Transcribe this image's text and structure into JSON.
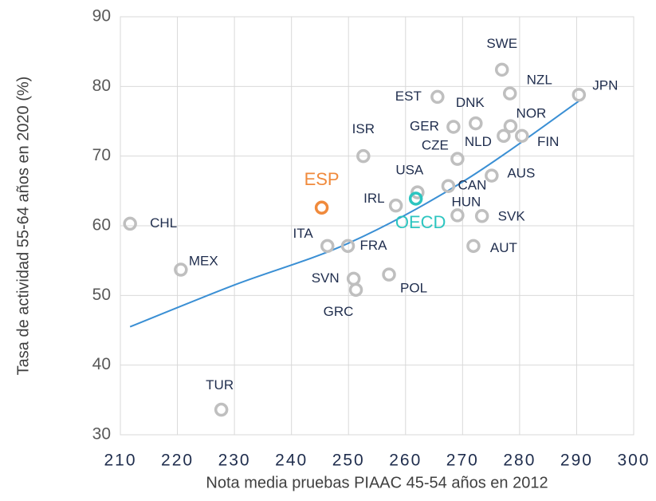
{
  "chart_data": {
    "type": "scatter",
    "xlabel": "Nota media pruebas PIAAC 45-54 años en 2012",
    "ylabel": "Tasa de actividad 55-64 años en 2020 (%)",
    "xlim": [
      210,
      300
    ],
    "xticks": [
      210,
      220,
      230,
      240,
      250,
      260,
      270,
      280,
      290,
      300
    ],
    "ylim": [
      30,
      90
    ],
    "yticks": [
      30,
      40,
      50,
      60,
      70,
      80,
      90
    ],
    "grid": true,
    "color": "#bfbfbf",
    "points": [
      {
        "label": "CHL",
        "x": 211.7,
        "y": 60.3
      },
      {
        "label": "MEX",
        "x": 220.6,
        "y": 53.7
      },
      {
        "label": "TUR",
        "x": 227.7,
        "y": 33.6
      },
      {
        "label": "ITA",
        "x": 246.3,
        "y": 57.1
      },
      {
        "label": "FRA",
        "x": 249.9,
        "y": 57.1
      },
      {
        "label": "SVN",
        "x": 250.9,
        "y": 52.4
      },
      {
        "label": "GRC",
        "x": 251.3,
        "y": 50.8
      },
      {
        "label": "ESP",
        "x": 245.3,
        "y": 62.6,
        "color": "#f08a3c"
      },
      {
        "label": "ISR",
        "x": 252.6,
        "y": 70.0
      },
      {
        "label": "IRL",
        "x": 258.3,
        "y": 62.9
      },
      {
        "label": "POL",
        "x": 257.1,
        "y": 53.0
      },
      {
        "label": "USA",
        "x": 262.1,
        "y": 64.8
      },
      {
        "label": "OECD",
        "x": 261.8,
        "y": 63.9,
        "color": "#2cc5c0"
      },
      {
        "label": "EST",
        "x": 265.6,
        "y": 78.5
      },
      {
        "label": "GER",
        "x": 268.4,
        "y": 74.2
      },
      {
        "label": "DNK",
        "x": 272.3,
        "y": 74.7
      },
      {
        "label": "CZE",
        "x": 269.1,
        "y": 69.6
      },
      {
        "label": "CAN",
        "x": 267.5,
        "y": 65.7
      },
      {
        "label": "HUN",
        "x": 269.1,
        "y": 61.5
      },
      {
        "label": "AUT",
        "x": 271.9,
        "y": 57.1
      },
      {
        "label": "SVK",
        "x": 273.4,
        "y": 61.4
      },
      {
        "label": "AUS",
        "x": 275.1,
        "y": 67.2
      },
      {
        "label": "NLD",
        "x": 277.2,
        "y": 72.9
      },
      {
        "label": "NOR",
        "x": 278.4,
        "y": 74.3
      },
      {
        "label": "FIN",
        "x": 280.4,
        "y": 72.9
      },
      {
        "label": "SWE",
        "x": 276.9,
        "y": 82.4
      },
      {
        "label": "NZL",
        "x": 278.3,
        "y": 79.0
      },
      {
        "label": "JPN",
        "x": 290.4,
        "y": 78.8
      }
    ],
    "trendline": {
      "color": "#3a8fd4",
      "x": [
        211.7,
        230,
        250,
        270,
        290.4
      ],
      "y": [
        45.5,
        51.5,
        57.5,
        66.3,
        77.9
      ]
    }
  }
}
